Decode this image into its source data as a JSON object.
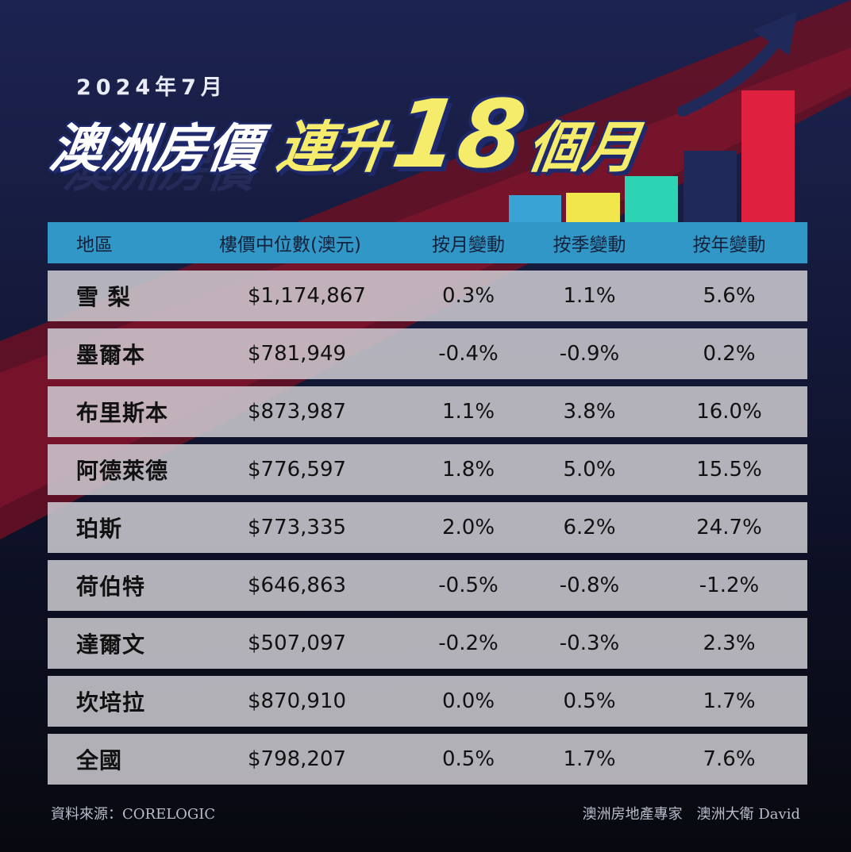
{
  "date": "2024年7月",
  "headline": {
    "part1": "澳洲房價",
    "part2": "連升",
    "number": "18",
    "part3": "個月"
  },
  "colors": {
    "header_blue": "#3197c6",
    "accent_yellow": "#f4ec6a",
    "accent_red": "#e0203f",
    "bar_teal": "#2dd4b4",
    "bar_navy": "#1f2a5a"
  },
  "table": {
    "headers": [
      "地區",
      "樓價中位數(澳元)",
      "按月變動",
      "按季變動",
      "按年變動"
    ],
    "rows": [
      {
        "region": "雪 梨",
        "median": "$1,174,867",
        "mom": "0.3%",
        "qoq": "1.1%",
        "yoy": "5.6%"
      },
      {
        "region": "墨爾本",
        "median": "$781,949",
        "mom": "-0.4%",
        "qoq": "-0.9%",
        "yoy": "0.2%"
      },
      {
        "region": "布里斯本",
        "median": "$873,987",
        "mom": "1.1%",
        "qoq": "3.8%",
        "yoy": "16.0%"
      },
      {
        "region": "阿德萊德",
        "median": "$776,597",
        "mom": "1.8%",
        "qoq": "5.0%",
        "yoy": "15.5%"
      },
      {
        "region": "珀斯",
        "median": "$773,335",
        "mom": "2.0%",
        "qoq": "6.2%",
        "yoy": "24.7%"
      },
      {
        "region": "荷伯特",
        "median": "$646,863",
        "mom": "-0.5%",
        "qoq": "-0.8%",
        "yoy": "-1.2%"
      },
      {
        "region": "達爾文",
        "median": "$507,097",
        "mom": "-0.2%",
        "qoq": "-0.3%",
        "yoy": "2.3%"
      },
      {
        "region": "坎培拉",
        "median": "$870,910",
        "mom": "0.0%",
        "qoq": "0.5%",
        "yoy": "1.7%"
      },
      {
        "region": "全國",
        "median": "$798,207",
        "mom": "0.5%",
        "qoq": "1.7%",
        "yoy": "7.6%"
      }
    ]
  },
  "footer": {
    "source": "資料來源：CORELOGIC",
    "credit": "澳洲房地產專家　澳洲大衛 David"
  }
}
